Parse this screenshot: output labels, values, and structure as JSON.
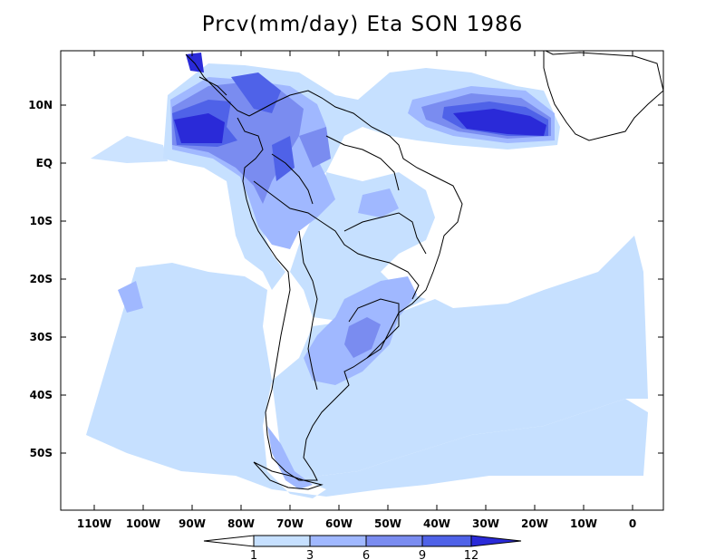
{
  "title": "Prcv(mm/day) Eta SON 1986",
  "map": {
    "variable": "Prcv",
    "units": "mm/day",
    "model": "Eta",
    "season": "SON",
    "year": "1986",
    "region": "South America",
    "lon_range": [
      -118,
      7
    ],
    "lat_range": [
      -59,
      19
    ],
    "lon_ticks": [
      "110W",
      "100W",
      "90W",
      "80W",
      "70W",
      "60W",
      "50W",
      "40W",
      "30W",
      "20W",
      "10W",
      "0"
    ],
    "lat_ticks": [
      "10N",
      "EQ",
      "10S",
      "20S",
      "30S",
      "40S",
      "50S"
    ]
  },
  "colorbar": {
    "levels": [
      "1",
      "3",
      "6",
      "9",
      "12"
    ],
    "colors": [
      "#ffffff",
      "#c6e0ff",
      "#a0b8ff",
      "#7a8cf0",
      "#4f62e8",
      "#2a2ad8"
    ]
  }
}
